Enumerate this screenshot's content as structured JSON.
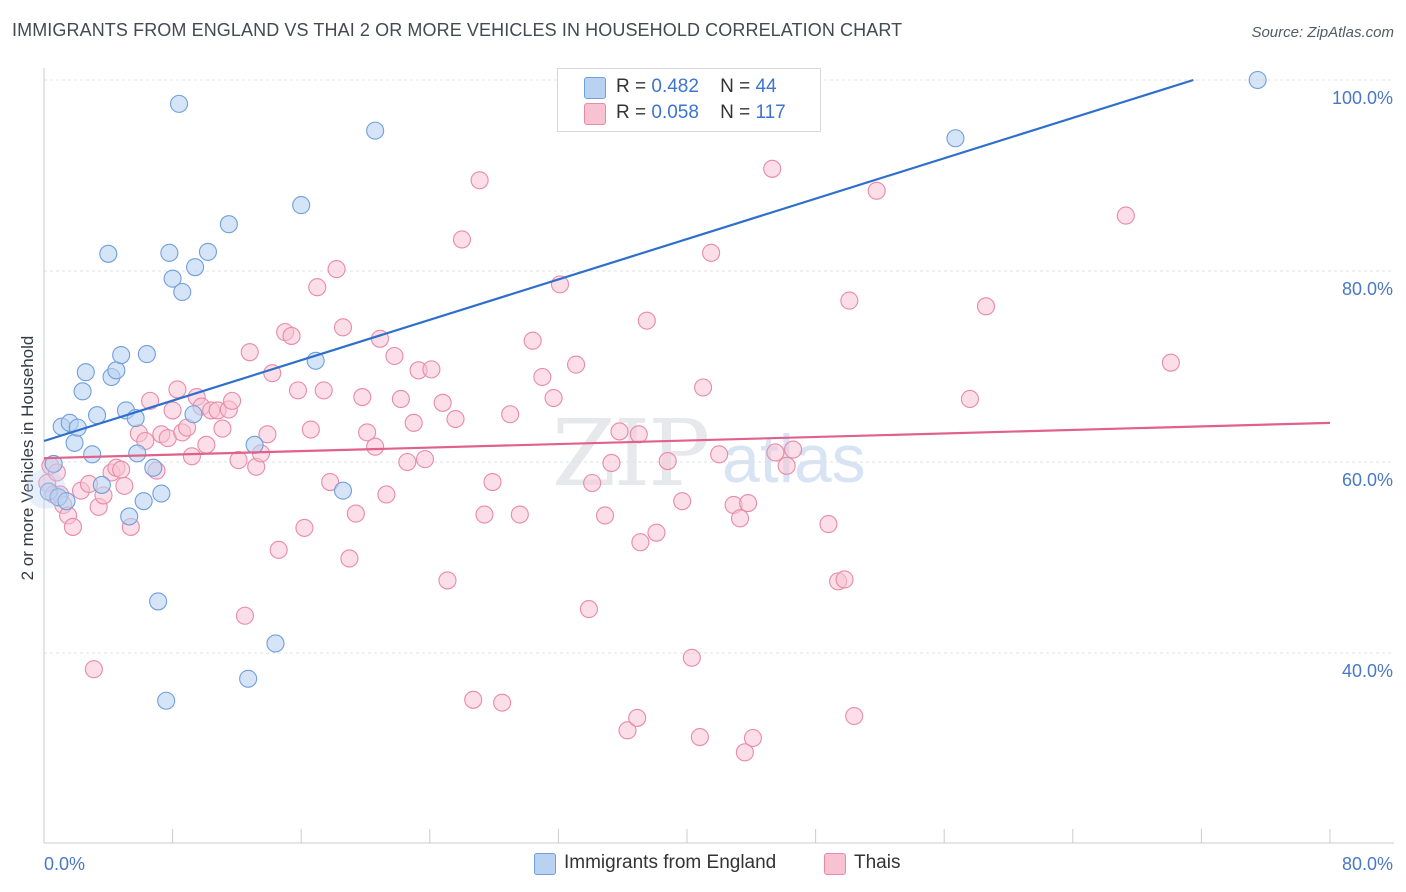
{
  "title": "IMMIGRANTS FROM ENGLAND VS THAI 2 OR MORE VEHICLES IN HOUSEHOLD CORRELATION CHART",
  "source": "Source: ZipAtlas.com",
  "watermark": {
    "zip": "ZIP",
    "atlas": "atlas"
  },
  "legend_top": {
    "rows": [
      {
        "r_label": "R =",
        "r_value": "0.482",
        "n_label": "N =",
        "n_value": "44"
      },
      {
        "r_label": "R =",
        "r_value": "0.058",
        "n_label": "N =",
        "n_value": "117"
      }
    ]
  },
  "legend_bottom": [
    {
      "label": "Immigrants from England"
    },
    {
      "label": "Thais"
    }
  ],
  "colors": {
    "england_fill": "#b9d2f2",
    "england_stroke": "#6f9fdc",
    "england_line": "#2f6fcc",
    "thais_fill": "#f7c3d3",
    "thais_stroke": "#e98aa8",
    "thais_line": "#e0618a",
    "grid": "#dde1e6",
    "tick_text": "#4a78c4"
  },
  "chart_data": {
    "type": "scatter",
    "title": "IMMIGRANTS FROM ENGLAND VS THAI 2 OR MORE VEHICLES IN HOUSEHOLD CORRELATION CHART",
    "xlabel": "",
    "ylabel": "2 or more Vehicles in Household",
    "xlim": [
      0,
      80
    ],
    "ylim": [
      20,
      100
    ],
    "x_tick_labels": [
      "0.0%",
      "80.0%"
    ],
    "y_ticks": [
      {
        "value": 40,
        "label": "40.0%"
      },
      {
        "value": 60,
        "label": "60.0%"
      },
      {
        "value": 80,
        "label": "80.0%"
      },
      {
        "value": 100,
        "label": "100.0%"
      }
    ],
    "series": [
      {
        "name": "Immigrants from England",
        "r": 0.482,
        "n": 44,
        "trend": {
          "x0": 0,
          "y0": 62.2,
          "x1": 71.5,
          "y1": 100
        },
        "points": [
          [
            0.3,
            56.9
          ],
          [
            0.6,
            59.8
          ],
          [
            0.9,
            56.3
          ],
          [
            1.1,
            63.7
          ],
          [
            1.4,
            55.9
          ],
          [
            1.6,
            64.1
          ],
          [
            1.9,
            62.0
          ],
          [
            2.1,
            63.6
          ],
          [
            2.4,
            67.4
          ],
          [
            2.6,
            69.4
          ],
          [
            3.0,
            60.8
          ],
          [
            3.3,
            64.9
          ],
          [
            3.6,
            57.6
          ],
          [
            4.0,
            81.8
          ],
          [
            4.2,
            68.9
          ],
          [
            4.5,
            69.6
          ],
          [
            4.8,
            71.2
          ],
          [
            5.1,
            65.4
          ],
          [
            5.3,
            54.3
          ],
          [
            5.7,
            64.6
          ],
          [
            5.8,
            60.9
          ],
          [
            6.2,
            55.9
          ],
          [
            6.4,
            71.3
          ],
          [
            6.8,
            59.4
          ],
          [
            7.1,
            45.4
          ],
          [
            7.3,
            56.7
          ],
          [
            7.6,
            35.0
          ],
          [
            7.8,
            81.9
          ],
          [
            8.0,
            79.2
          ],
          [
            8.4,
            97.5
          ],
          [
            8.6,
            77.8
          ],
          [
            9.3,
            65.0
          ],
          [
            9.4,
            80.4
          ],
          [
            10.2,
            82.0
          ],
          [
            11.5,
            84.9
          ],
          [
            12.7,
            37.3
          ],
          [
            13.1,
            61.8
          ],
          [
            14.4,
            41.0
          ],
          [
            16.0,
            86.9
          ],
          [
            16.9,
            70.6
          ],
          [
            18.6,
            57.0
          ],
          [
            20.6,
            94.7
          ],
          [
            56.7,
            93.9
          ],
          [
            75.5,
            100.0
          ]
        ]
      },
      {
        "name": "Thais",
        "r": 0.058,
        "n": 117,
        "trend": {
          "x0": 0,
          "y0": 60.4,
          "x1": 80,
          "y1": 64.1
        },
        "points": [
          [
            0.2,
            57.8
          ],
          [
            0.4,
            59.6
          ],
          [
            0.6,
            56.6
          ],
          [
            0.8,
            58.9
          ],
          [
            1.0,
            56.6
          ],
          [
            1.2,
            55.5
          ],
          [
            1.5,
            54.4
          ],
          [
            1.8,
            53.2
          ],
          [
            2.3,
            57.0
          ],
          [
            2.8,
            57.7
          ],
          [
            3.1,
            38.3
          ],
          [
            3.4,
            55.3
          ],
          [
            3.7,
            56.5
          ],
          [
            4.2,
            58.9
          ],
          [
            4.5,
            59.4
          ],
          [
            4.8,
            59.2
          ],
          [
            5.0,
            57.5
          ],
          [
            5.4,
            53.2
          ],
          [
            5.9,
            63.0
          ],
          [
            6.3,
            62.2
          ],
          [
            6.6,
            66.4
          ],
          [
            7.0,
            59.1
          ],
          [
            7.3,
            62.9
          ],
          [
            7.7,
            62.5
          ],
          [
            8.0,
            65.4
          ],
          [
            8.3,
            67.6
          ],
          [
            8.6,
            63.1
          ],
          [
            8.9,
            63.6
          ],
          [
            9.2,
            60.6
          ],
          [
            9.5,
            66.8
          ],
          [
            9.8,
            65.8
          ],
          [
            10.1,
            61.8
          ],
          [
            10.4,
            65.4
          ],
          [
            10.8,
            65.4
          ],
          [
            11.1,
            63.5
          ],
          [
            11.5,
            65.5
          ],
          [
            11.7,
            66.4
          ],
          [
            12.1,
            60.2
          ],
          [
            12.5,
            43.9
          ],
          [
            12.8,
            71.5
          ],
          [
            13.2,
            59.5
          ],
          [
            13.5,
            60.9
          ],
          [
            13.9,
            62.9
          ],
          [
            14.2,
            69.3
          ],
          [
            14.6,
            50.8
          ],
          [
            15.0,
            73.6
          ],
          [
            15.4,
            73.2
          ],
          [
            15.8,
            67.5
          ],
          [
            16.2,
            53.1
          ],
          [
            16.6,
            63.4
          ],
          [
            17.0,
            78.3
          ],
          [
            17.4,
            67.5
          ],
          [
            17.8,
            57.9
          ],
          [
            18.2,
            80.2
          ],
          [
            18.6,
            74.1
          ],
          [
            19.0,
            49.9
          ],
          [
            19.4,
            54.6
          ],
          [
            19.8,
            66.8
          ],
          [
            20.1,
            63.1
          ],
          [
            20.6,
            61.6
          ],
          [
            20.9,
            72.9
          ],
          [
            21.3,
            56.6
          ],
          [
            21.8,
            71.1
          ],
          [
            22.2,
            66.6
          ],
          [
            22.6,
            60.0
          ],
          [
            23.0,
            64.1
          ],
          [
            23.3,
            69.6
          ],
          [
            23.7,
            60.3
          ],
          [
            24.1,
            69.7
          ],
          [
            24.8,
            66.2
          ],
          [
            25.1,
            47.6
          ],
          [
            25.6,
            64.5
          ],
          [
            26.0,
            83.3
          ],
          [
            26.7,
            35.1
          ],
          [
            27.1,
            89.5
          ],
          [
            27.4,
            54.5
          ],
          [
            27.9,
            57.9
          ],
          [
            28.5,
            34.8
          ],
          [
            29.0,
            65.0
          ],
          [
            29.6,
            54.5
          ],
          [
            30.4,
            72.7
          ],
          [
            31.0,
            68.9
          ],
          [
            31.7,
            66.7
          ],
          [
            32.1,
            78.6
          ],
          [
            33.1,
            70.2
          ],
          [
            33.9,
            44.6
          ],
          [
            34.1,
            57.8
          ],
          [
            34.9,
            54.4
          ],
          [
            35.3,
            59.9
          ],
          [
            35.8,
            63.2
          ],
          [
            36.3,
            31.9
          ],
          [
            36.9,
            33.2
          ],
          [
            37.5,
            74.8
          ],
          [
            37.1,
            51.6
          ],
          [
            38.1,
            52.6
          ],
          [
            38.8,
            60.1
          ],
          [
            39.7,
            55.9
          ],
          [
            40.3,
            39.5
          ],
          [
            40.8,
            31.2
          ],
          [
            41.0,
            67.8
          ],
          [
            41.5,
            81.9
          ],
          [
            42.0,
            60.8
          ],
          [
            42.9,
            55.5
          ],
          [
            43.3,
            54.1
          ],
          [
            43.6,
            29.6
          ],
          [
            43.8,
            55.7
          ],
          [
            44.1,
            31.1
          ],
          [
            45.3,
            90.7
          ],
          [
            46.2,
            59.6
          ],
          [
            46.6,
            61.3
          ],
          [
            48.8,
            53.5
          ],
          [
            49.4,
            47.5
          ],
          [
            49.8,
            47.7
          ],
          [
            50.1,
            76.9
          ],
          [
            50.4,
            33.4
          ],
          [
            51.8,
            88.4
          ],
          [
            57.6,
            66.6
          ],
          [
            58.6,
            76.3
          ],
          [
            67.3,
            85.8
          ],
          [
            70.1,
            70.4
          ],
          [
            45.5,
            61.0
          ],
          [
            37.0,
            62.9
          ]
        ]
      }
    ]
  }
}
